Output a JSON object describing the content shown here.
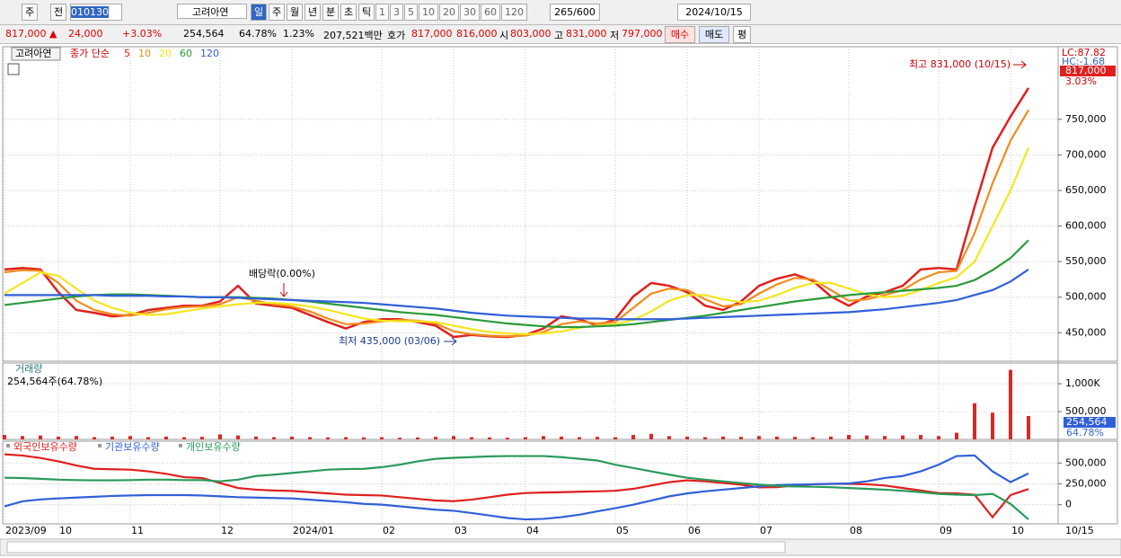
{
  "toolbar": {
    "period": "주",
    "prev": "전",
    "code": "010130",
    "name": "고려아연",
    "intervals": [
      "일",
      "주",
      "월",
      "년",
      "분",
      "초",
      "틱"
    ],
    "counts": [
      "1",
      "3",
      "5",
      "10",
      "20",
      "30",
      "60",
      "120"
    ],
    "count_shown": "265",
    "count_max": "/600",
    "date": "2024/10/15"
  },
  "info_bar": {
    "price": "817,000 ▲",
    "change": "24,000",
    "rate": "+3.03%",
    "volume": "254,564",
    "volume_rate": "64.78%",
    "turnover": "1.23%",
    "amount": "207,521백만",
    "quote_label": "호가",
    "ask": "817,000",
    "bid": "816,000",
    "open_label": "시",
    "open": "803,000",
    "high_label": "고",
    "high": "831,000",
    "low_label": "저",
    "low": "797,000",
    "buy": "매수",
    "sell": "매도",
    "avg": "평"
  },
  "chart_data": [
    {
      "type": "line",
      "title": "고려아연",
      "legend_title": "종가 단순",
      "ylim": [
        410000,
        852000
      ],
      "yticks": [
        {
          "value": 450000,
          "label": "450,000"
        },
        {
          "value": 500000,
          "label": "500,000"
        },
        {
          "value": 550000,
          "label": "550,000"
        },
        {
          "value": 600000,
          "label": "600,000"
        },
        {
          "value": 650000,
          "label": "650,000"
        },
        {
          "value": 700000,
          "label": "700,000"
        },
        {
          "value": 750000,
          "label": "750,000"
        }
      ],
      "grid": true,
      "lc_label": "LC:87.82",
      "hc_label": "HC:-1.68",
      "last_label": "817,000",
      "last_rate": "3.03%",
      "annotations": [
        "배당락(0.00%)",
        "최저 435,000 (03/06)",
        "최고 831,000 (10/15)"
      ],
      "series": [
        {
          "name": "5",
          "color": "#e0201e",
          "values": [
            539000,
            541000,
            539000,
            507000,
            482000,
            478000,
            473000,
            475000,
            482000,
            485000,
            488000,
            488000,
            494000,
            516000,
            491000,
            488000,
            485000,
            475000,
            465000,
            456000,
            465000,
            469000,
            469000,
            465000,
            460000,
            444000,
            447000,
            445000,
            444000,
            447000,
            456000,
            473000,
            469000,
            460000,
            469000,
            501000,
            520000,
            516000,
            507000,
            488000,
            482000,
            494000,
            516000,
            526000,
            532000,
            523000,
            501000,
            488000,
            501000,
            507000,
            516000,
            539000,
            541000,
            539000,
            627000,
            710000,
            754000,
            794000
          ]
        },
        {
          "name": "10",
          "color": "#f08c1e",
          "values": [
            535000,
            538000,
            537000,
            520000,
            495000,
            482000,
            476000,
            474000,
            478000,
            483000,
            486000,
            487000,
            490000,
            500000,
            495000,
            490000,
            487000,
            480000,
            470000,
            462000,
            463000,
            466000,
            468000,
            467000,
            463000,
            452000,
            448000,
            446000,
            445000,
            446000,
            451000,
            462000,
            466000,
            463000,
            465000,
            485000,
            505000,
            512000,
            510000,
            497000,
            487000,
            490000,
            505000,
            518000,
            527000,
            525000,
            510000,
            495000,
            497000,
            503000,
            510000,
            525000,
            535000,
            537000,
            590000,
            660000,
            720000,
            763000
          ]
        },
        {
          "name": "20",
          "color": "#f5e61e",
          "values": [
            505000,
            520000,
            535000,
            530000,
            512000,
            495000,
            485000,
            478000,
            475000,
            476000,
            480000,
            484000,
            487000,
            490000,
            492000,
            492000,
            490000,
            487000,
            482000,
            476000,
            470000,
            467000,
            466000,
            466000,
            465000,
            460000,
            455000,
            451000,
            449000,
            448000,
            449000,
            452000,
            457000,
            460000,
            462000,
            468000,
            480000,
            495000,
            503000,
            503000,
            497000,
            493000,
            495000,
            503000,
            513000,
            520000,
            520000,
            512000,
            504000,
            500000,
            502000,
            510000,
            520000,
            528000,
            550000,
            600000,
            650000,
            710000
          ]
        },
        {
          "name": "60",
          "color": "#2a9a3a",
          "values": [
            489000,
            492000,
            495000,
            498000,
            501000,
            503000,
            504000,
            504000,
            503000,
            502000,
            501000,
            500000,
            500000,
            500000,
            499000,
            498000,
            496000,
            494000,
            491000,
            488000,
            485000,
            482000,
            479000,
            477000,
            475000,
            472000,
            469000,
            466000,
            463000,
            461000,
            459000,
            458000,
            458000,
            459000,
            460000,
            462000,
            465000,
            468000,
            471000,
            474000,
            478000,
            482000,
            486000,
            490000,
            494000,
            497000,
            500000,
            503000,
            505000,
            507000,
            509000,
            511000,
            513000,
            516000,
            524000,
            538000,
            555000,
            580000
          ]
        },
        {
          "name": "120",
          "color": "#3060d8",
          "values": [
            503000,
            503000,
            503000,
            503000,
            503000,
            503000,
            502000,
            502000,
            502000,
            501000,
            501000,
            500000,
            500000,
            499000,
            498000,
            497000,
            496000,
            495000,
            494000,
            493000,
            492000,
            490000,
            488000,
            486000,
            484000,
            481000,
            478000,
            476000,
            474000,
            473000,
            472000,
            471000,
            470000,
            470000,
            469000,
            469000,
            469000,
            469000,
            470000,
            471000,
            472000,
            473000,
            474000,
            475000,
            476000,
            477000,
            478000,
            479000,
            481000,
            483000,
            486000,
            489000,
            492000,
            496000,
            503000,
            510000,
            522000,
            539000
          ]
        }
      ]
    },
    {
      "type": "bar",
      "title": "거래량",
      "subtitle": "254,564주(64.78%)",
      "color": "#d82828",
      "ylim": [
        0,
        1340000
      ],
      "yticks": [
        {
          "value": 500000,
          "label": "500,000"
        },
        {
          "value": 1000000,
          "label": "1,000K"
        }
      ],
      "last_label": "254,564",
      "last_rate": "64.78%",
      "values": [
        80000,
        60000,
        70000,
        50000,
        60000,
        40000,
        50000,
        60000,
        40000,
        50000,
        40000,
        45000,
        90000,
        70000,
        50000,
        40000,
        50000,
        40000,
        35000,
        40000,
        35000,
        40000,
        30000,
        35000,
        45000,
        60000,
        40000,
        35000,
        30000,
        40000,
        60000,
        50000,
        40000,
        45000,
        40000,
        80000,
        100000,
        60000,
        50000,
        40000,
        50000,
        45000,
        60000,
        50000,
        45000,
        40000,
        50000,
        80000,
        70000,
        60000,
        70000,
        80000,
        60000,
        120000,
        650000,
        480000,
        1250000,
        420000
      ]
    },
    {
      "type": "line",
      "ylim": [
        -230000,
        740000
      ],
      "yticks": [
        0,
        {
          "value": 250000,
          "label": "250,000"
        },
        {
          "value": 500000,
          "label": "500,000"
        }
      ],
      "categories": [
        "2023/09",
        null,
        null,
        "10",
        null,
        null,
        null,
        "11",
        null,
        null,
        null,
        null,
        "12",
        null,
        null,
        null,
        "2024/01",
        null,
        null,
        null,
        null,
        "02",
        null,
        null,
        null,
        "03",
        null,
        null,
        null,
        "04",
        null,
        null,
        null,
        null,
        "05",
        null,
        null,
        null,
        "06",
        null,
        null,
        null,
        "07",
        null,
        null,
        null,
        null,
        "08",
        null,
        null,
        null,
        null,
        "09",
        null,
        null,
        null,
        "10",
        null
      ],
      "x_end_label": "10/15",
      "series": [
        {
          "name": "외국인보유수량",
          "color": "#e0201e",
          "values": [
            604000,
            590000,
            560000,
            520000,
            470000,
            430000,
            425000,
            420000,
            400000,
            370000,
            330000,
            320000,
            260000,
            200000,
            180000,
            170000,
            165000,
            150000,
            135000,
            120000,
            115000,
            110000,
            90000,
            70000,
            50000,
            42000,
            60000,
            90000,
            120000,
            140000,
            146000,
            150000,
            155000,
            160000,
            167000,
            190000,
            230000,
            270000,
            292000,
            280000,
            260000,
            240000,
            208000,
            210000,
            230000,
            245000,
            250000,
            250000,
            245000,
            230000,
            200000,
            170000,
            140000,
            135000,
            120000,
            -150000,
            115000,
            188000
          ]
        },
        {
          "name": "기관보유수량",
          "color": "#3060d8",
          "values": [
            -21000,
            40000,
            63000,
            75000,
            85000,
            95000,
            105000,
            110000,
            115000,
            115000,
            115000,
            110000,
            100000,
            90000,
            85000,
            80000,
            75000,
            60000,
            45000,
            30000,
            10000,
            0,
            -20000,
            -40000,
            -60000,
            -73000,
            -100000,
            -130000,
            -160000,
            -177000,
            -170000,
            -150000,
            -120000,
            -80000,
            -42000,
            0,
            50000,
            100000,
            135000,
            160000,
            180000,
            200000,
            220000,
            235000,
            240000,
            245000,
            250000,
            255000,
            280000,
            320000,
            344000,
            400000,
            480000,
            583000,
            590000,
            400000,
            271000,
            375000
          ]
        },
        {
          "name": "개인보유수량",
          "color": "#2a9a5a",
          "values": [
            323000,
            320000,
            310000,
            300000,
            295000,
            292000,
            292000,
            295000,
            300000,
            300000,
            295000,
            295000,
            280000,
            300000,
            344000,
            360000,
            380000,
            400000,
            420000,
            427000,
            430000,
            450000,
            480000,
            520000,
            550000,
            562000,
            570000,
            580000,
            583000,
            583000,
            583000,
            570000,
            550000,
            530000,
            479000,
            440000,
            400000,
            360000,
            323000,
            300000,
            280000,
            260000,
            240000,
            225000,
            219000,
            215000,
            210000,
            200000,
            190000,
            180000,
            167000,
            150000,
            130000,
            120000,
            115000,
            130000,
            10000,
            -177000
          ]
        }
      ]
    }
  ]
}
